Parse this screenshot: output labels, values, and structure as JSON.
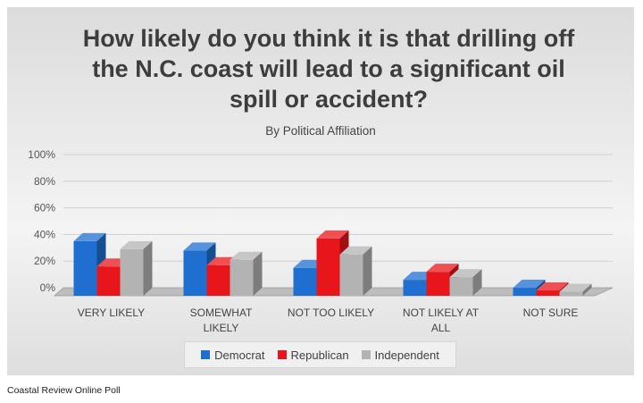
{
  "chart_data": {
    "type": "bar",
    "title": "How likely do you think it is that drilling off the N.C. coast will lead to a significant oil spill or accident?",
    "title_lines": [
      "How likely do you think it is that drilling off",
      "the N.C. coast will lead to a significant oil",
      "spill or accident?"
    ],
    "subtitle": "By Political Affiliation",
    "categories": [
      "VERY LIKELY",
      "SOMEWHAT LIKELY",
      "NOT TOO LIKELY",
      "NOT LIKELY AT ALL",
      "NOT SURE"
    ],
    "category_lines": [
      [
        "VERY LIKELY"
      ],
      [
        "SOMEWHAT",
        "LIKELY"
      ],
      [
        "NOT TOO LIKELY"
      ],
      [
        "NOT LIKELY AT",
        "ALL"
      ],
      [
        "NOT SURE"
      ]
    ],
    "series": [
      {
        "name": "Democrat",
        "color": "#1f6fd1",
        "values": [
          41,
          34,
          21,
          12,
          6
        ]
      },
      {
        "name": "Republican",
        "color": "#e8161b",
        "values": [
          22,
          23,
          43,
          18,
          4
        ]
      },
      {
        "name": "Independent",
        "color": "#b3b3b3",
        "values": [
          35,
          27,
          31,
          14,
          3
        ]
      }
    ],
    "y_ticks": [
      "100%",
      "80%",
      "60%",
      "40%",
      "20%",
      "0%"
    ],
    "ylim": [
      0,
      100
    ],
    "grid": true,
    "legend_position": "bottom",
    "style": "3d-clustered-column"
  },
  "footer": "Coastal Review Online Poll"
}
